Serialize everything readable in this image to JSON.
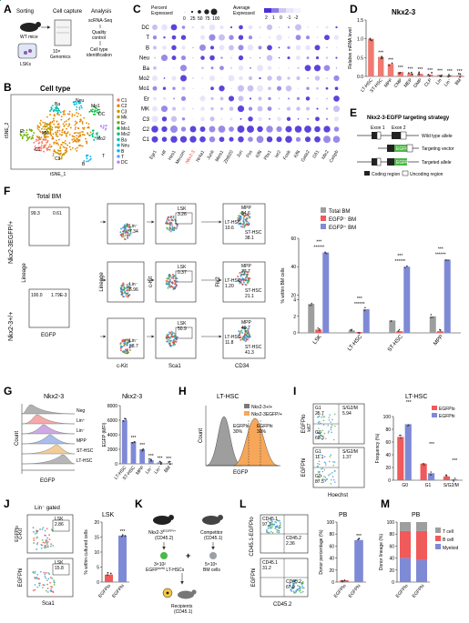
{
  "panels": {
    "A": "A",
    "B": "B",
    "C": "C",
    "D": "D",
    "E": "E",
    "F": "F",
    "G": "G",
    "H": "H",
    "I": "I",
    "J": "J",
    "K": "K",
    "L": "L",
    "M": "M"
  },
  "A": {
    "step1": "Sorting",
    "step2": "Cell capture",
    "step3": "Analysis",
    "wt": "WT mice",
    "lsk": "LSKs",
    "tenx": "10×\nGenomics",
    "sc1": "scRNA-Seq",
    "sc2": "Quality",
    "sc3": "control",
    "sc4": "Cell type",
    "sc5": "identification"
  },
  "B": {
    "title": "Cell type",
    "xlabel": "tSNE_1",
    "ylabel": "tSNE_2",
    "legend": [
      "C1",
      "C2",
      "C3",
      "Mk",
      "Er",
      "Mo1",
      "Mo2",
      "Ba",
      "Neu",
      "B",
      "T",
      "DC"
    ],
    "legend_colors": [
      "#f8766d",
      "#e58700",
      "#c99800",
      "#a3a500",
      "#6bb100",
      "#00ba38",
      "#00bf7d",
      "#00c0af",
      "#00bcd8",
      "#00b0f6",
      "#619cff",
      "#b983ff"
    ],
    "cluster_labels": [
      "Ba",
      "Neu",
      "Mo1",
      "DC",
      "Mo2",
      "T",
      "C1",
      "Er",
      "C3",
      "MK",
      "B"
    ]
  },
  "C": {
    "legend_pct_title": "Percent\nExpressed",
    "legend_pct_ticks": [
      "0",
      "25",
      "50",
      "75",
      "100"
    ],
    "legend_avg_title": "Average\nExpressed",
    "legend_avg_ticks": [
      "2",
      "1",
      "0",
      "-1",
      "-2"
    ],
    "rows": [
      "DC",
      "T",
      "B",
      "Neu",
      "Ba",
      "Mo2",
      "Mo1",
      "Er",
      "MK",
      "C3",
      "C2",
      "C1"
    ],
    "genes": [
      "Egr1",
      "Hlf",
      "Hes1",
      "Mecom",
      "Nkx2-3",
      "Nr4a1",
      "Junb",
      "Meis1",
      "Zbtb20",
      "Jun",
      "Fos",
      "Klf6",
      "Pbx1",
      "Ier2",
      "Fosb",
      "Klf6",
      "Gata2",
      "Gfi1",
      "Nfe2",
      "Cebpb"
    ],
    "highlight_gene": "Nkx2-3"
  },
  "D": {
    "title": "Nkx2-3",
    "ylabel": "Relative mRNA level",
    "chart_data": {
      "type": "bar",
      "categories": [
        "LT-HSC",
        "ST-HSC",
        "MPP",
        "CMP",
        "MEP",
        "GMP",
        "CLP",
        "Lin",
        "Lin⁻",
        "BM"
      ],
      "values": [
        1.0,
        0.52,
        0.33,
        0.12,
        0.08,
        0.07,
        0.05,
        0.04,
        0.03,
        0.03
      ],
      "sig": [
        "",
        "***",
        "***",
        "***",
        "***",
        "***",
        "***",
        "***",
        "***",
        "***"
      ],
      "ylim": [
        0,
        1.5
      ],
      "yticks": [
        "0.0",
        "0.5",
        "1.0",
        "1.5"
      ]
    }
  },
  "E": {
    "title": "Nkx2-3-EGFP targeting strategy",
    "exon1": "Exon 1",
    "exon2": "Exon 2",
    "wt": "Wild type allele",
    "tv": "Targeting vector",
    "ta": "Targeted allele",
    "egfp": "EGFP",
    "coding": "Coding region",
    "uncoding": "Uncoding region"
  },
  "F": {
    "row1": "Nkx2-3EGFP/+",
    "row2": "Nkx2-3+/+",
    "total_bm": "Total BM",
    "q1a": "99.3",
    "q1b": "0.61",
    "q2a": "100.0",
    "q2b": "1.79E-3",
    "ylab_lin": "Lineage",
    "xlab_egfp": "EGFP",
    "xlab_ckit": "c-Kit",
    "xlab_sca": "Sca1",
    "ylab_ckit": "c-Kit",
    "ylab_flk2": "Flk2",
    "xlab_cd34": "CD34",
    "lin": [
      "Lin⁻\n7.34",
      "Lin⁻\n6.96",
      "Lin⁻\n68.7"
    ],
    "lsk": [
      "LSK\n3.26",
      "LSK\n0.37",
      "LSK\n50.9"
    ],
    "mpp": [
      "MPP\n54.6",
      "MPP\n77.7",
      "MPP\n46.7"
    ],
    "lt": [
      "LT-HSC\n10.6",
      "LT-HSC\n1.20",
      "LT-HSC\n11.8"
    ],
    "st": [
      "ST-HSC\n38.1",
      "ST-HSC\n21.1",
      "ST-HSC\n41.3"
    ],
    "chart_data": {
      "type": "bar",
      "categories": [
        "LSK",
        "LT-HSC",
        "ST-HSC",
        "MPP"
      ],
      "series": [
        {
          "name": "Total BM",
          "values": [
            3.5,
            0.3,
            1.5,
            2.0
          ]
        },
        {
          "name": "EGFP⁻ BM",
          "values": [
            0.4,
            0.1,
            0.2,
            0.2
          ]
        },
        {
          "name": "EGFP⁺ BM",
          "values": [
            50,
            10,
            40,
            45
          ]
        }
      ],
      "ylabel": "% within BM cells",
      "yticks": [
        "0",
        "2",
        "4",
        "20",
        "40",
        "60"
      ],
      "sig": "***"
    }
  },
  "G": {
    "hist_title": "Nkx2-3",
    "hist_rows": [
      "Neg",
      "Lin⁺",
      "Lin⁻",
      "MPP",
      "ST-HSC",
      "LT-HSC"
    ],
    "hist_colors": [
      "#aaaaaa",
      "#f4a0a0",
      "#c9a0e0",
      "#a0b8e8",
      "#f0c890",
      "#b0b0b0"
    ],
    "ylab": "Count",
    "xlab": "EGFP",
    "bar_title": "Nkx2-3",
    "chart_data": {
      "type": "bar",
      "categories": [
        "LT-HSC",
        "ST-HSC",
        "MPP",
        "Lin⁻",
        "Lin⁺",
        "BM"
      ],
      "values": [
        6000,
        3000,
        2000,
        500,
        200,
        100
      ],
      "sig": [
        "",
        "***",
        "***",
        "***",
        "***",
        "***"
      ],
      "ylabel": "EGFP (MFI)",
      "yticks": [
        "0",
        "2000",
        "4000",
        "6000",
        "8000"
      ]
    }
  },
  "H": {
    "title": "LT-HSC",
    "leg1": "Nkx2-3+/+",
    "leg2": "Nkx2-3EGFP/+",
    "lo": "EGFPlo\n30%",
    "hi": "EGFPhi\n30%",
    "ylab": "Count",
    "xlab": "EGFP"
  },
  "I": {
    "ylab_top": "EGFPlo",
    "ylab_bot": "EGFPhi",
    "xlab": "Hoechst",
    "ki67": "ki67",
    "top": {
      "g1": "G1\n25.7",
      "s": "S/G2/M\n5.94",
      "g0": "G0\n68.3"
    },
    "bot": {
      "g1": "G1\n11.1",
      "s": "S/G2/M\n1.37",
      "g0": "G0\n87.5"
    },
    "bar_title": "LT-HSC",
    "chart_data": {
      "type": "bar",
      "categories": [
        "G0",
        "G1",
        "S/G2/M"
      ],
      "series": [
        {
          "name": "EGFPlo",
          "values": [
            68,
            26,
            6
          ]
        },
        {
          "name": "EGFPhi",
          "values": [
            88,
            11,
            1.4
          ]
        }
      ],
      "ylabel": "Frequency (%)",
      "yticks": [
        "0",
        "20",
        "40",
        "60",
        "80",
        "100"
      ],
      "sig": "***"
    }
  },
  "J": {
    "gate": "Lin⁻ gated",
    "lsk1": "LSK\n2.86",
    "lsk2": "LSK\n15.8",
    "ylab1": "c-Kit",
    "ylab2": "EGFPhi",
    "xlab": "Sca1",
    "ylab_lo": "EGFPlo",
    "bar_title": "LSK",
    "chart_data": {
      "type": "bar",
      "categories": [
        "EGFPlo",
        "EGFPhi"
      ],
      "values": [
        2.5,
        15.5
      ],
      "ylabel": "% within cultured cells",
      "yticks": [
        "0",
        "5",
        "10",
        "15",
        "20"
      ],
      "sig": "***"
    }
  },
  "K": {
    "donor": "Nkx2-3EGFP/+\n(CD45.2)",
    "donor_cells": "3×10²\nEGFPlo/hi LT-HSCs",
    "competitor": "Competitor\n(CD45.1)",
    "competitor_cells": "5×10⁵\nBM cells",
    "recipients": "Recipients\n(CD45.1)",
    "plus": "+"
  },
  "L": {
    "ylab": "CD45.1-EGFPlo",
    "ylab2": "EGFPhi",
    "xlab": "CD45.2",
    "q": [
      "CD45.1\n97.1",
      "CD45.2\n2.36",
      "CD45.1\n31.2",
      "CD45.2\n67.9"
    ],
    "bar_title": "PB",
    "chart_data": {
      "type": "bar",
      "categories": [
        "EGFPlo",
        "EGFPhi"
      ],
      "values": [
        3,
        70
      ],
      "ylabel": "Donor percentage (%)",
      "yticks": [
        "0",
        "20",
        "40",
        "60",
        "80",
        "100"
      ],
      "sig": "***"
    }
  },
  "M": {
    "title": "PB",
    "chart_data": {
      "type": "bar",
      "categories": [
        "EGFPlo",
        "EGFPhi"
      ],
      "series": [
        {
          "name": "T cell",
          "values": [
            15,
            15
          ],
          "color": "#9e9e9e"
        },
        {
          "name": "B cell",
          "values": [
            45,
            48
          ],
          "color": "#f05a5a"
        },
        {
          "name": "Myeloid",
          "values": [
            40,
            37
          ],
          "color": "#7f8ad6"
        }
      ],
      "ylabel": "Donor lineage (%)",
      "yticks": [
        "0",
        "20",
        "40",
        "60",
        "80",
        "100"
      ]
    }
  }
}
